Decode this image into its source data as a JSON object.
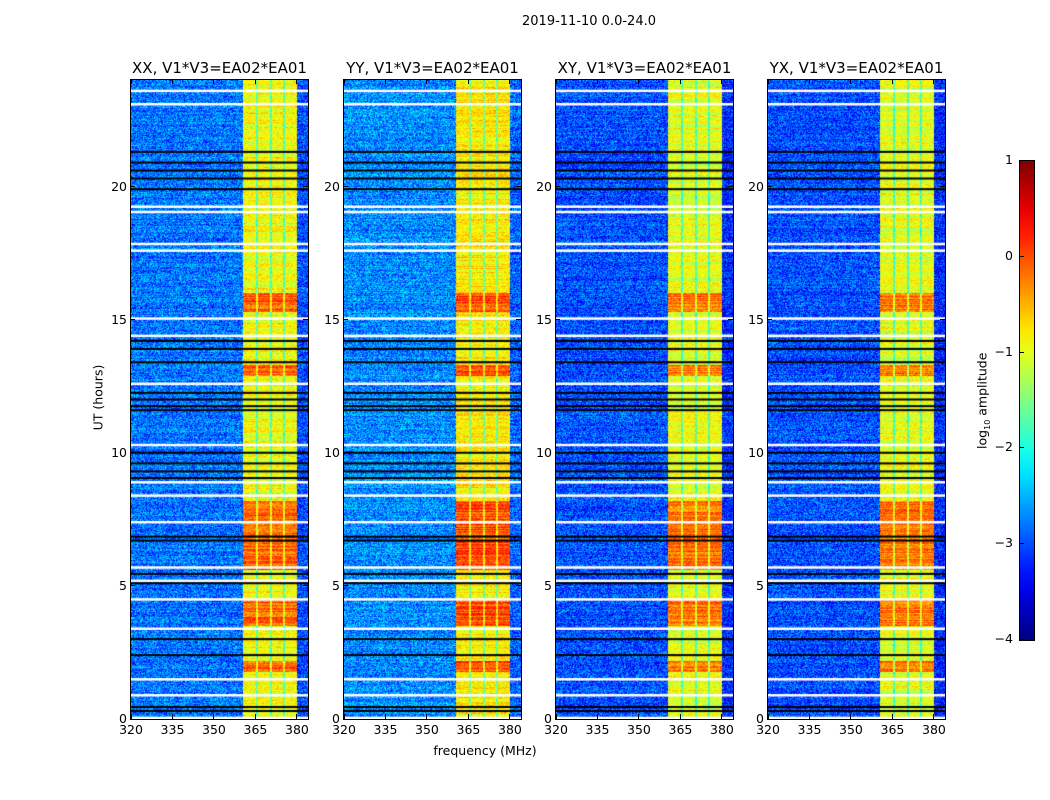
{
  "suptitle": "2019-11-10 0.0-24.0",
  "xlabel": "frequency (MHz)",
  "ylabel": "UT (hours)",
  "colorbar": {
    "label_main": "log",
    "label_sub": "10",
    "label_rest": " amplitude",
    "ticks": [
      "1",
      "0",
      "−1",
      "−2",
      "−3",
      "−4"
    ],
    "range": [
      -4,
      1
    ],
    "colormap": "jet"
  },
  "chart_data": {
    "type": "heatmap",
    "title": "2019-11-10 0.0-24.0",
    "xlabel": "frequency (MHz)",
    "ylabel": "UT (hours)",
    "xlim": [
      320,
      384
    ],
    "ylim": [
      0,
      24
    ],
    "x_ticks": [
      "320",
      "335",
      "350",
      "365",
      "380"
    ],
    "x_tick_values": [
      320,
      335,
      350,
      365,
      380
    ],
    "y_ticks": [
      "0",
      "5",
      "10",
      "15",
      "20"
    ],
    "y_tick_values": [
      0,
      5,
      10,
      15,
      20
    ],
    "color_scale": {
      "label": "log10 amplitude",
      "min": -4,
      "max": 1
    },
    "panels": [
      {
        "title": "XX, V1*V3=EA02*EA01",
        "background_level": -2.8,
        "band_level": -0.9,
        "seed": 11
      },
      {
        "title": "YY, V1*V3=EA02*EA01",
        "background_level": -2.7,
        "band_level": -0.8,
        "seed": 23
      },
      {
        "title": "XY, V1*V3=EA02*EA01",
        "background_level": -3.0,
        "band_level": -1.0,
        "seed": 37
      },
      {
        "title": "YX, V1*V3=EA02*EA01",
        "background_level": -3.0,
        "band_level": -1.0,
        "seed": 41
      }
    ],
    "rfi_band_mhz": [
      360.4,
      380
    ],
    "band_sub_edges_mhz": [
      365.5,
      370.5,
      375
    ],
    "hot_time_ranges_hours": [
      [
        15.3,
        16.0
      ],
      [
        12.9,
        13.3
      ],
      [
        5.6,
        8.2
      ],
      [
        3.5,
        4.5
      ],
      [
        1.8,
        2.2
      ]
    ],
    "flagged_white_hours": [
      23.6,
      23.1,
      19.25,
      19.05,
      17.85,
      17.6,
      15.05,
      14.4,
      12.6,
      10.3,
      8.9,
      8.4,
      7.4,
      5.7,
      5.2,
      4.5,
      3.4,
      1.5,
      0.9,
      0.05
    ],
    "flagged_black_hours": [
      21.3,
      20.9,
      20.6,
      20.3,
      19.9,
      14.2,
      13.9,
      13.4,
      12.25,
      12.0,
      11.75,
      11.6,
      10.0,
      9.6,
      9.3,
      9.05,
      6.85,
      6.7,
      5.45,
      5.1,
      3.0,
      2.4,
      0.45,
      0.3
    ]
  }
}
